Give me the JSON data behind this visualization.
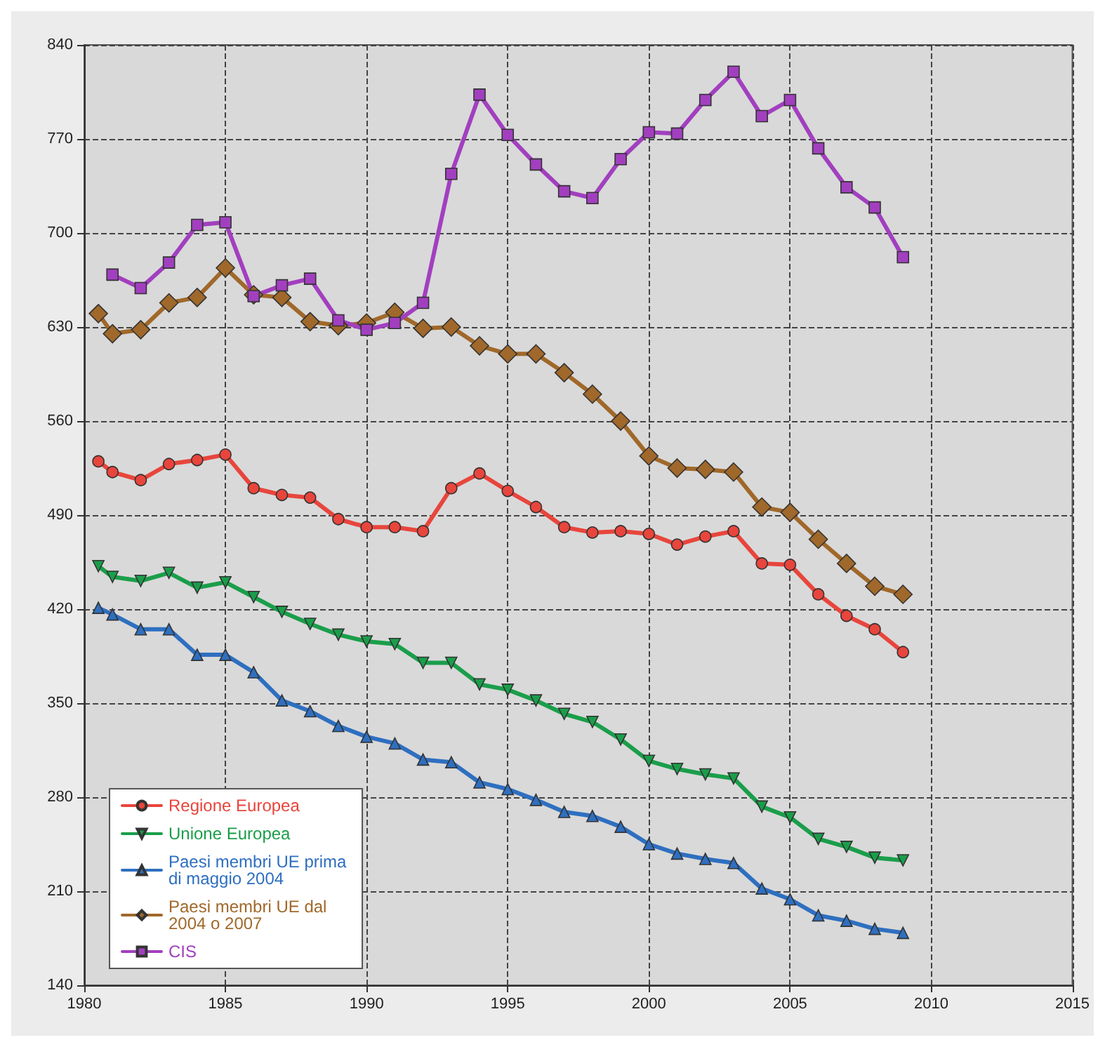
{
  "chart_data": {
    "type": "line",
    "xlim": [
      1980,
      2015
    ],
    "xticks": [
      1980,
      1985,
      1990,
      1995,
      2000,
      2005,
      2010,
      2015
    ],
    "ylim": [
      140,
      840
    ],
    "yticks": [
      140,
      210,
      280,
      350,
      420,
      490,
      560,
      630,
      700,
      770,
      840
    ],
    "grid": true,
    "legend": "bottom left",
    "line_style": "solid",
    "x": [
      1980.5,
      1981,
      1982,
      1983,
      1984,
      1985,
      1986,
      1987,
      1988,
      1989,
      1990,
      1991,
      1992,
      1993,
      1994,
      1995,
      1996,
      1997,
      1998,
      1999,
      2000,
      2001,
      2002,
      2003,
      2004,
      2005,
      2006,
      2007,
      2008,
      2009
    ],
    "series": [
      {
        "name": "Regione Europea",
        "color": "#e8453c",
        "marker": "circle",
        "values": [
          530,
          522,
          516,
          528,
          531,
          535,
          510,
          505,
          503,
          487,
          481,
          481,
          478,
          510,
          521,
          508,
          496,
          481,
          477,
          478,
          476,
          468,
          474,
          478,
          454,
          453,
          431,
          415,
          405,
          388
        ]
      },
      {
        "name": "Unione Europea",
        "color": "#1a9e4a",
        "marker": "triangle-down",
        "values": [
          452,
          444,
          441,
          447,
          436,
          440,
          429,
          418,
          409,
          401,
          396,
          394,
          380,
          380,
          364,
          360,
          352,
          342,
          336,
          323,
          307,
          301,
          297,
          294,
          273,
          265,
          249,
          243,
          235,
          233
        ]
      },
      {
        "name": "Paesi membri UE prima di maggio 2004",
        "color": "#2e6fc0",
        "marker": "triangle",
        "values": [
          421,
          416,
          405,
          405,
          386,
          386,
          373,
          352,
          344,
          333,
          325,
          320,
          308,
          306,
          291,
          286,
          278,
          269,
          266,
          258,
          245,
          238,
          234,
          231,
          212,
          204,
          192,
          188,
          182,
          179
        ]
      },
      {
        "name": "Paesi membri UE dal 2004 o 2007",
        "color": "#a0682a",
        "marker": "diamond",
        "values": [
          640,
          625,
          628,
          648,
          652,
          674,
          654,
          652,
          634,
          631,
          633,
          641,
          629,
          630,
          616,
          610,
          610,
          596,
          580,
          560,
          534,
          525,
          524,
          522,
          496,
          492,
          472,
          454,
          437,
          431
        ]
      },
      {
        "name": "CIS",
        "color": "#a23fbf",
        "marker": "square",
        "values": [
          null,
          669,
          659,
          678,
          706,
          708,
          653,
          661,
          666,
          635,
          628,
          633,
          648,
          744,
          803,
          773,
          751,
          731,
          726,
          755,
          775,
          774,
          799,
          820,
          787,
          799,
          763,
          734,
          719,
          682
        ]
      }
    ]
  }
}
